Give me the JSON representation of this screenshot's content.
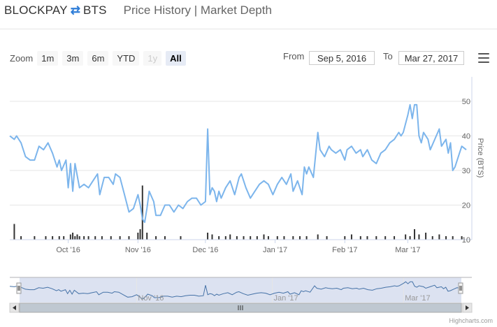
{
  "header": {
    "base": "BLOCKPAY",
    "quote": "BTS",
    "links": "Price History | Market Depth"
  },
  "zoom": {
    "label": "Zoom",
    "buttons": [
      {
        "label": "1m",
        "state": "normal"
      },
      {
        "label": "3m",
        "state": "normal"
      },
      {
        "label": "6m",
        "state": "normal"
      },
      {
        "label": "YTD",
        "state": "normal"
      },
      {
        "label": "1y",
        "state": "disabled"
      },
      {
        "label": "All",
        "state": "selected"
      }
    ]
  },
  "range": {
    "from_label": "From",
    "from_value": "Sep 5, 2016",
    "to_label": "To",
    "to_value": "Mar 27, 2017"
  },
  "credit": "Highcharts.com",
  "colors": {
    "line": "#7cb5ec",
    "volume": "#333333",
    "navigator_fill": "#cdd6eb",
    "navigator_line": "#4572a7"
  },
  "chart_data": {
    "type": "line",
    "x_start": "2016-09-05",
    "x_end": "2017-03-27",
    "ylabel": "Price (BTS)",
    "ylim": [
      10,
      50
    ],
    "yticks": [
      10,
      20,
      30,
      40,
      50
    ],
    "xticks": [
      {
        "label": "Oct '16",
        "date": "2016-10-01"
      },
      {
        "label": "Nov '16",
        "date": "2016-11-01"
      },
      {
        "label": "Dec '16",
        "date": "2016-12-01"
      },
      {
        "label": "Jan '17",
        "date": "2017-01-01"
      },
      {
        "label": "Feb '17",
        "date": "2017-02-01"
      },
      {
        "label": "Mar '17",
        "date": "2017-03-01"
      }
    ],
    "navigator_ticks": [
      {
        "label": "Nov '16",
        "date": "2016-11-01"
      },
      {
        "label": "Jan '17",
        "date": "2017-01-01"
      },
      {
        "label": "Mar '17",
        "date": "2017-03-01"
      }
    ],
    "series": [
      {
        "kind": "price",
        "points": [
          [
            "2016-09-05",
            40
          ],
          [
            "2016-09-07",
            39
          ],
          [
            "2016-09-08",
            40
          ],
          [
            "2016-09-10",
            38
          ],
          [
            "2016-09-12",
            34
          ],
          [
            "2016-09-14",
            33
          ],
          [
            "2016-09-16",
            33
          ],
          [
            "2016-09-18",
            37
          ],
          [
            "2016-09-20",
            36
          ],
          [
            "2016-09-22",
            38
          ],
          [
            "2016-09-24",
            35
          ],
          [
            "2016-09-26",
            31
          ],
          [
            "2016-09-27",
            33
          ],
          [
            "2016-09-28",
            30
          ],
          [
            "2016-09-30",
            33
          ],
          [
            "2016-10-01",
            25
          ],
          [
            "2016-10-02",
            32
          ],
          [
            "2016-10-03",
            24
          ],
          [
            "2016-10-04",
            32
          ],
          [
            "2016-10-06",
            25
          ],
          [
            "2016-10-08",
            26
          ],
          [
            "2016-10-10",
            25
          ],
          [
            "2016-10-12",
            27
          ],
          [
            "2016-10-14",
            29
          ],
          [
            "2016-10-15",
            23
          ],
          [
            "2016-10-17",
            28
          ],
          [
            "2016-10-19",
            28
          ],
          [
            "2016-10-21",
            26
          ],
          [
            "2016-10-22",
            29
          ],
          [
            "2016-10-24",
            28
          ],
          [
            "2016-10-26",
            23
          ],
          [
            "2016-10-28",
            18
          ],
          [
            "2016-10-30",
            19
          ],
          [
            "2016-11-01",
            23
          ],
          [
            "2016-11-02",
            20
          ],
          [
            "2016-11-03",
            16
          ],
          [
            "2016-11-04",
            15
          ],
          [
            "2016-11-05",
            19
          ],
          [
            "2016-11-06",
            24
          ],
          [
            "2016-11-08",
            21
          ],
          [
            "2016-11-09",
            17
          ],
          [
            "2016-11-11",
            17
          ],
          [
            "2016-11-13",
            20
          ],
          [
            "2016-11-15",
            20
          ],
          [
            "2016-11-17",
            18
          ],
          [
            "2016-11-19",
            20
          ],
          [
            "2016-11-21",
            19
          ],
          [
            "2016-11-23",
            21
          ],
          [
            "2016-11-25",
            22
          ],
          [
            "2016-11-27",
            22
          ],
          [
            "2016-11-29",
            20
          ],
          [
            "2016-12-01",
            21
          ],
          [
            "2016-12-02",
            42
          ],
          [
            "2016-12-03",
            23
          ],
          [
            "2016-12-04",
            25
          ],
          [
            "2016-12-05",
            24
          ],
          [
            "2016-12-06",
            21
          ],
          [
            "2016-12-07",
            24
          ],
          [
            "2016-12-08",
            22
          ],
          [
            "2016-12-10",
            25
          ],
          [
            "2016-12-12",
            27
          ],
          [
            "2016-12-14",
            23
          ],
          [
            "2016-12-16",
            28
          ],
          [
            "2016-12-17",
            29
          ],
          [
            "2016-12-19",
            25
          ],
          [
            "2016-12-21",
            22
          ],
          [
            "2016-12-23",
            24
          ],
          [
            "2016-12-25",
            26
          ],
          [
            "2016-12-27",
            27
          ],
          [
            "2016-12-29",
            26
          ],
          [
            "2016-12-31",
            23
          ],
          [
            "2017-01-02",
            26
          ],
          [
            "2017-01-04",
            28
          ],
          [
            "2017-01-06",
            26
          ],
          [
            "2017-01-08",
            29
          ],
          [
            "2017-01-09",
            24
          ],
          [
            "2017-01-11",
            27
          ],
          [
            "2017-01-13",
            23
          ],
          [
            "2017-01-14",
            31
          ],
          [
            "2017-01-15",
            29
          ],
          [
            "2017-01-16",
            31
          ],
          [
            "2017-01-18",
            28
          ],
          [
            "2017-01-20",
            41
          ],
          [
            "2017-01-21",
            36
          ],
          [
            "2017-01-23",
            34
          ],
          [
            "2017-01-25",
            37
          ],
          [
            "2017-01-26",
            36
          ],
          [
            "2017-01-28",
            35
          ],
          [
            "2017-01-30",
            36
          ],
          [
            "2017-02-01",
            33
          ],
          [
            "2017-02-02",
            36
          ],
          [
            "2017-02-04",
            37
          ],
          [
            "2017-02-06",
            35
          ],
          [
            "2017-02-08",
            36
          ],
          [
            "2017-02-09",
            34
          ],
          [
            "2017-02-11",
            36
          ],
          [
            "2017-02-13",
            33
          ],
          [
            "2017-02-15",
            32
          ],
          [
            "2017-02-17",
            35
          ],
          [
            "2017-02-19",
            36
          ],
          [
            "2017-02-21",
            38
          ],
          [
            "2017-02-23",
            39
          ],
          [
            "2017-02-25",
            41
          ],
          [
            "2017-02-26",
            40
          ],
          [
            "2017-02-27",
            41
          ],
          [
            "2017-03-01",
            46
          ],
          [
            "2017-03-02",
            49
          ],
          [
            "2017-03-03",
            45
          ],
          [
            "2017-03-04",
            49
          ],
          [
            "2017-03-05",
            49
          ],
          [
            "2017-03-06",
            40
          ],
          [
            "2017-03-07",
            38
          ],
          [
            "2017-03-08",
            41
          ],
          [
            "2017-03-10",
            39
          ],
          [
            "2017-03-11",
            36
          ],
          [
            "2017-03-13",
            39
          ],
          [
            "2017-03-15",
            42
          ],
          [
            "2017-03-16",
            37
          ],
          [
            "2017-03-18",
            39
          ],
          [
            "2017-03-19",
            35
          ],
          [
            "2017-03-20",
            38
          ],
          [
            "2017-03-21",
            30
          ],
          [
            "2017-03-22",
            31
          ],
          [
            "2017-03-24",
            35
          ],
          [
            "2017-03-25",
            37
          ],
          [
            "2017-03-27",
            36
          ]
        ]
      },
      {
        "kind": "volume",
        "points": [
          [
            "2016-09-07",
            4.5
          ],
          [
            "2016-09-10",
            1
          ],
          [
            "2016-09-16",
            1
          ],
          [
            "2016-09-21",
            1
          ],
          [
            "2016-09-24",
            1
          ],
          [
            "2016-09-27",
            1
          ],
          [
            "2016-09-29",
            1
          ],
          [
            "2016-10-02",
            1.5
          ],
          [
            "2016-10-03",
            2
          ],
          [
            "2016-10-04",
            1
          ],
          [
            "2016-10-05",
            1.5
          ],
          [
            "2016-10-06",
            1
          ],
          [
            "2016-10-08",
            1
          ],
          [
            "2016-10-10",
            1
          ],
          [
            "2016-10-13",
            1
          ],
          [
            "2016-10-16",
            1
          ],
          [
            "2016-10-20",
            1
          ],
          [
            "2016-10-24",
            1
          ],
          [
            "2016-10-28",
            1
          ],
          [
            "2016-11-01",
            2
          ],
          [
            "2016-11-02",
            3
          ],
          [
            "2016-11-03",
            15.5
          ],
          [
            "2016-11-05",
            2
          ],
          [
            "2016-11-09",
            1
          ],
          [
            "2016-11-13",
            1
          ],
          [
            "2016-11-20",
            1
          ],
          [
            "2016-12-02",
            2
          ],
          [
            "2016-12-04",
            1.5
          ],
          [
            "2016-12-07",
            1
          ],
          [
            "2016-12-10",
            1
          ],
          [
            "2016-12-12",
            1.5
          ],
          [
            "2016-12-15",
            1
          ],
          [
            "2016-12-18",
            1
          ],
          [
            "2016-12-21",
            1
          ],
          [
            "2016-12-24",
            1
          ],
          [
            "2016-12-27",
            1.5
          ],
          [
            "2016-12-29",
            1
          ],
          [
            "2017-01-02",
            1
          ],
          [
            "2017-01-05",
            1
          ],
          [
            "2017-01-09",
            1
          ],
          [
            "2017-01-12",
            1
          ],
          [
            "2017-01-15",
            1
          ],
          [
            "2017-01-20",
            1.5
          ],
          [
            "2017-01-24",
            1
          ],
          [
            "2017-02-01",
            1
          ],
          [
            "2017-02-04",
            1.5
          ],
          [
            "2017-02-08",
            1
          ],
          [
            "2017-02-11",
            1
          ],
          [
            "2017-02-15",
            1
          ],
          [
            "2017-02-19",
            1
          ],
          [
            "2017-02-23",
            1
          ],
          [
            "2017-02-28",
            1.5
          ],
          [
            "2017-03-02",
            1
          ],
          [
            "2017-03-04",
            3
          ],
          [
            "2017-03-06",
            1.5
          ],
          [
            "2017-03-09",
            2
          ],
          [
            "2017-03-12",
            1
          ],
          [
            "2017-03-15",
            1.5
          ],
          [
            "2017-03-18",
            1
          ],
          [
            "2017-03-21",
            1
          ],
          [
            "2017-03-25",
            1
          ]
        ]
      }
    ]
  }
}
